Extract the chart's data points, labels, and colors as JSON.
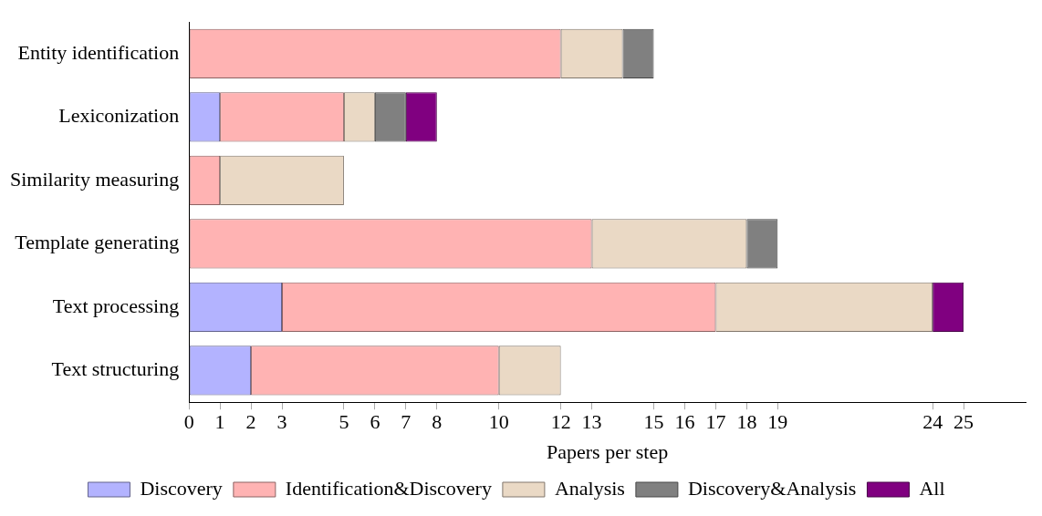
{
  "chart_data": {
    "type": "bar",
    "orientation": "horizontal",
    "stacked": true,
    "xlabel": "Papers per step",
    "categories": [
      "Entity identification",
      "Lexiconization",
      "Similarity measuring",
      "Template generating",
      "Text processing",
      "Text structuring"
    ],
    "series": [
      {
        "name": "Discovery",
        "color": "#b3b3ff",
        "values": [
          0,
          1,
          0,
          0,
          3,
          2
        ]
      },
      {
        "name": "Identification&Discovery",
        "color": "#ffb3b3",
        "values": [
          12,
          4,
          1,
          13,
          14,
          8
        ]
      },
      {
        "name": "Analysis",
        "color": "#ead9c5",
        "values": [
          2,
          1,
          4,
          5,
          7,
          2
        ]
      },
      {
        "name": "Discovery&Analysis",
        "color": "#808080",
        "values": [
          1,
          1,
          0,
          1,
          0,
          0
        ]
      },
      {
        "name": "All",
        "color": "#800080",
        "values": [
          0,
          1,
          0,
          0,
          1,
          0
        ]
      }
    ],
    "xlim": [
      0,
      27
    ],
    "xticks": [
      0,
      1,
      2,
      3,
      5,
      6,
      7,
      8,
      10,
      12,
      13,
      15,
      16,
      17,
      18,
      19,
      24,
      25
    ],
    "legend": "bottom"
  }
}
